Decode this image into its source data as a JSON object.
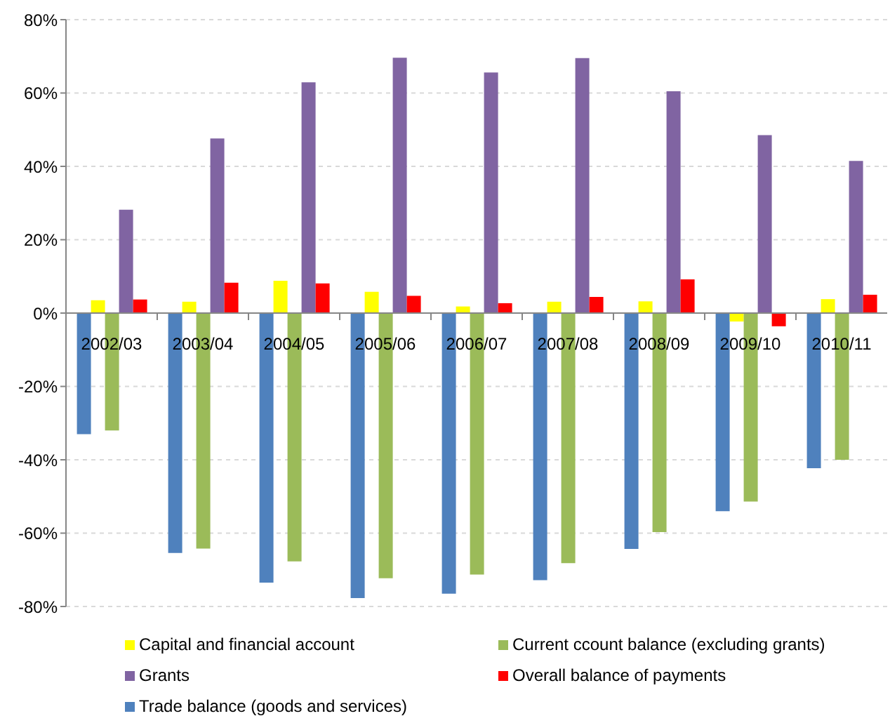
{
  "chart_data": {
    "type": "bar",
    "categories": [
      "2002/03",
      "2003/04",
      "2004/05",
      "2005/06",
      "2006/07",
      "2007/08",
      "2008/09",
      "2009/10",
      "2010/11"
    ],
    "series": [
      {
        "name": "Trade balance (goods and services)",
        "color": "#4f81bd",
        "values": [
          -33,
          -65.4,
          -73.5,
          -77.7,
          -76.5,
          -72.8,
          -64.3,
          -54,
          -42.3
        ]
      },
      {
        "name": "Capital and financial account",
        "color": "#ffff00",
        "values": [
          3.5,
          3.1,
          8.8,
          5.8,
          1.8,
          3.1,
          3.2,
          -2.3,
          3.8
        ]
      },
      {
        "name": "Current ccount balance (excluding grants)",
        "color": "#9bbb59",
        "values": [
          -32,
          -64.2,
          -67.7,
          -72.3,
          -71.3,
          -68.2,
          -59.7,
          -51.4,
          -40
        ]
      },
      {
        "name": "Grants",
        "color": "#8064a2",
        "values": [
          28.2,
          47.6,
          62.9,
          69.6,
          65.6,
          69.5,
          60.5,
          48.5,
          41.5
        ]
      },
      {
        "name": "Overall balance of payments",
        "color": "#ff0000",
        "values": [
          3.7,
          8.3,
          8.1,
          4.7,
          2.7,
          4.4,
          9.2,
          -3.6,
          5
        ]
      }
    ],
    "ylim": [
      -80,
      80
    ],
    "yticks": [
      {
        "value": -80,
        "label": "-80%"
      },
      {
        "value": -60,
        "label": "-60%"
      },
      {
        "value": -40,
        "label": "-40%"
      },
      {
        "value": -20,
        "label": "-20%"
      },
      {
        "value": 0,
        "label": "0%"
      },
      {
        "value": 20,
        "label": "20%"
      },
      {
        "value": 40,
        "label": "40%"
      },
      {
        "value": 60,
        "label": "60%"
      },
      {
        "value": 80,
        "label": "80%"
      }
    ],
    "grid": "y",
    "legend": "bottom"
  }
}
